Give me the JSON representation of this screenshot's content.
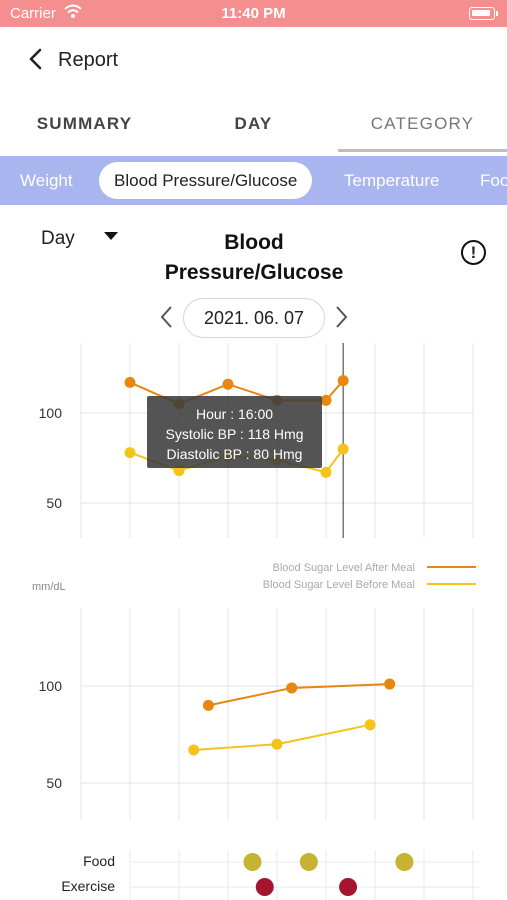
{
  "status": {
    "carrier": "Carrier",
    "time": "11:40 PM"
  },
  "nav": {
    "title": "Report"
  },
  "tabs": [
    "SUMMARY",
    "DAY",
    "CATEGORY"
  ],
  "active_tab": "CATEGORY",
  "categories": [
    "Weight",
    "Blood Pressure/Glucose",
    "Temperature",
    "Foo"
  ],
  "active_category": "Blood Pressure/Glucose",
  "period": "Day",
  "chart_title_line1": "Blood",
  "chart_title_line2": "Pressure/Glucose",
  "info_glyph": "!",
  "date": "2021. 06. 07",
  "colors": {
    "after_meal": "#e8860e",
    "before_meal": "#f5c31a",
    "food": "#c6b332",
    "exercise": "#a6152f",
    "chip_bar": "#a9b5ef",
    "statusbar": "#f58f8f"
  },
  "tooltip": {
    "line1": "Hour : 16:00",
    "line2": "Systolic BP : 118 Hmg",
    "line3": "Diastolic BP : 80 Hmg"
  },
  "chart_data": [
    {
      "type": "line",
      "title": "",
      "yticks": [
        "100",
        "50"
      ],
      "ylim": [
        40,
        150
      ],
      "x": [
        1,
        2,
        3,
        4,
        5,
        5.35
      ],
      "series": [
        {
          "values": [
            117,
            105,
            116,
            107,
            107,
            118
          ]
        },
        {
          "values": [
            78,
            68,
            76,
            74,
            67,
            80
          ]
        }
      ],
      "cursor_x": 5.35
    },
    {
      "type": "line",
      "ylabel": "mm/dL",
      "yticks": [
        "100",
        "50"
      ],
      "ylim": [
        35,
        125
      ],
      "legend": [
        "Blood Sugar Level After Meal",
        "Blood Sugar Level Before Meal"
      ],
      "x": [
        2.7,
        4.4,
        6.4
      ],
      "series": [
        {
          "name": "Blood Sugar Level After Meal",
          "x": [
            2.6,
            4.3,
            6.3
          ],
          "values": [
            90,
            99,
            101
          ]
        },
        {
          "name": "Blood Sugar Level Before Meal",
          "x": [
            2.3,
            4.0,
            5.9
          ],
          "values": [
            67,
            70,
            80
          ]
        }
      ]
    },
    {
      "type": "scatter",
      "rows": [
        "Food",
        "Exercise"
      ],
      "points": [
        {
          "row": "Food",
          "x": [
            3.5,
            4.65,
            6.6
          ]
        },
        {
          "row": "Exercise",
          "x": [
            3.75,
            5.45
          ]
        }
      ]
    }
  ]
}
